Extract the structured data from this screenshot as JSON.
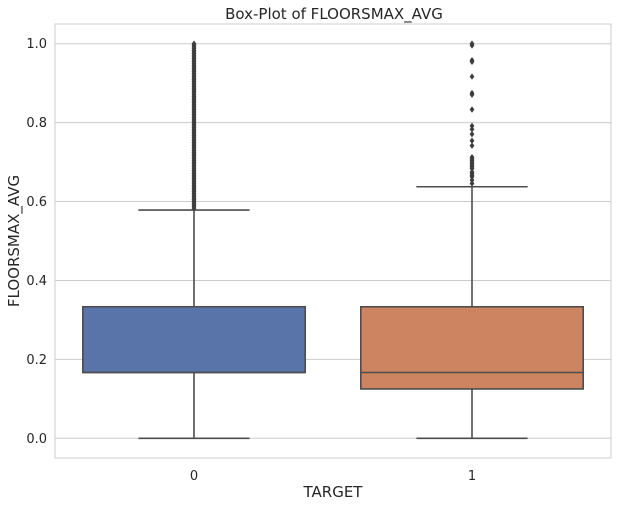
{
  "chart_data": {
    "type": "box",
    "title": "Box-Plot of FLOORSMAX_AVG",
    "xlabel": "TARGET",
    "ylabel": "FLOORSMAX_AVG",
    "ylim": [
      -0.05,
      1.05
    ],
    "yticks": [
      0.0,
      0.2,
      0.4,
      0.6,
      0.8,
      1.0
    ],
    "grid": true,
    "categories": [
      "0",
      "1"
    ],
    "boxes": [
      {
        "category": "0",
        "color": "#5874a8",
        "min": 0.0,
        "q1": 0.1667,
        "median": 0.1667,
        "q3": 0.3333,
        "whisker_low": 0.0,
        "whisker_high": 0.5783,
        "outliers": [
          0.583,
          0.5875,
          0.5917,
          0.5958,
          0.6,
          0.6042,
          0.6083,
          0.6125,
          0.6167,
          0.6208,
          0.625,
          0.6292,
          0.6333,
          0.6375,
          0.6417,
          0.6458,
          0.65,
          0.6542,
          0.6583,
          0.6625,
          0.6667,
          0.6708,
          0.675,
          0.6792,
          0.6833,
          0.6875,
          0.6917,
          0.6958,
          0.7,
          0.7042,
          0.7083,
          0.7125,
          0.7167,
          0.7208,
          0.725,
          0.7292,
          0.7333,
          0.7375,
          0.7417,
          0.7458,
          0.75,
          0.7542,
          0.7583,
          0.7625,
          0.7667,
          0.7708,
          0.775,
          0.7792,
          0.7833,
          0.7875,
          0.7917,
          0.7958,
          0.8,
          0.8042,
          0.8083,
          0.8125,
          0.8167,
          0.8208,
          0.825,
          0.8292,
          0.8333,
          0.8375,
          0.8417,
          0.8458,
          0.85,
          0.8542,
          0.8583,
          0.8625,
          0.8667,
          0.8708,
          0.875,
          0.8792,
          0.8833,
          0.8875,
          0.8917,
          0.8958,
          0.9,
          0.9042,
          0.9083,
          0.9125,
          0.9167,
          0.9208,
          0.925,
          0.9292,
          0.9333,
          0.9375,
          0.9417,
          0.9458,
          0.95,
          0.9542,
          0.9583,
          0.9625,
          0.9667,
          0.9708,
          0.975,
          0.9792,
          0.9833,
          0.9875,
          0.9917,
          0.9958,
          1.0
        ]
      },
      {
        "category": "1",
        "color": "#cc8560",
        "min": 0.0,
        "q1": 0.125,
        "median": 0.1667,
        "q3": 0.3333,
        "whisker_low": 0.0,
        "whisker_high": 0.6375,
        "outliers": [
          0.6458,
          0.6542,
          0.6625,
          0.6667,
          0.6708,
          0.675,
          0.6833,
          0.6875,
          0.6917,
          0.6958,
          0.7,
          0.7042,
          0.7083,
          0.7125,
          0.7417,
          0.7542,
          0.7708,
          0.7833,
          0.7917,
          0.8333,
          0.8708,
          0.875,
          0.9167,
          0.9542,
          0.9583,
          0.9958,
          1.0
        ]
      }
    ]
  }
}
